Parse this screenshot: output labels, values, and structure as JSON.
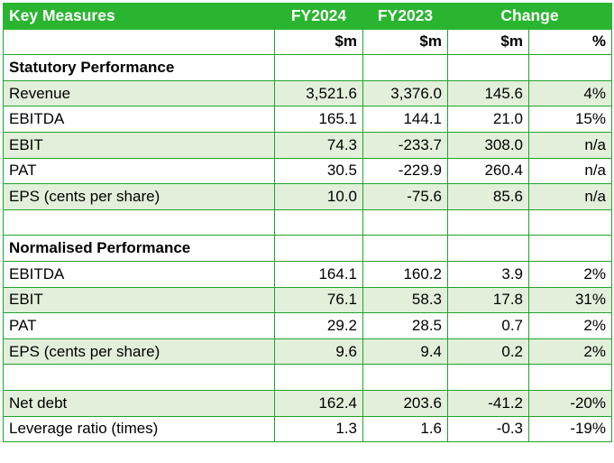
{
  "header": {
    "label": "Key Measures",
    "fy2024": "FY2024",
    "fy2023": "FY2023",
    "change": "Change"
  },
  "units": {
    "fy2024": "$m",
    "fy2023": "$m",
    "change_abs": "$m",
    "change_pct": "%"
  },
  "sections": [
    {
      "title": "Statutory Performance",
      "rows": [
        {
          "label": "Revenue",
          "fy2024": "3,521.6",
          "fy2023": "3,376.0",
          "change": "145.6",
          "pct": "4%"
        },
        {
          "label": "EBITDA",
          "fy2024": "165.1",
          "fy2023": "144.1",
          "change": "21.0",
          "pct": "15%"
        },
        {
          "label": "EBIT",
          "fy2024": "74.3",
          "fy2023": "-233.7",
          "change": "308.0",
          "pct": "n/a"
        },
        {
          "label": "PAT",
          "fy2024": "30.5",
          "fy2023": "-229.9",
          "change": "260.4",
          "pct": "n/a"
        },
        {
          "label": "EPS (cents per share)",
          "fy2024": "10.0",
          "fy2023": "-75.6",
          "change": "85.6",
          "pct": "n/a"
        }
      ]
    },
    {
      "title": "Normalised Performance",
      "rows": [
        {
          "label": "EBITDA",
          "fy2024": "164.1",
          "fy2023": "160.2",
          "change": "3.9",
          "pct": "2%"
        },
        {
          "label": "EBIT",
          "fy2024": "76.1",
          "fy2023": "58.3",
          "change": "17.8",
          "pct": "31%"
        },
        {
          "label": "PAT",
          "fy2024": "29.2",
          "fy2023": "28.5",
          "change": "0.7",
          "pct": "2%"
        },
        {
          "label": "EPS (cents per share)",
          "fy2024": "9.6",
          "fy2023": "9.4",
          "change": "0.2",
          "pct": "2%"
        }
      ]
    }
  ],
  "other_rows": [
    {
      "label": "Net debt",
      "fy2024": "162.4",
      "fy2023": "203.6",
      "change": "-41.2",
      "pct": "-20%"
    },
    {
      "label": "Leverage ratio (times)",
      "fy2024": "1.3",
      "fy2023": "1.6",
      "change": "-0.3",
      "pct": "-19%"
    }
  ],
  "colors": {
    "header_green": "#2ab530",
    "border_green": "#21a32b",
    "row_shade": "#e2efda"
  }
}
